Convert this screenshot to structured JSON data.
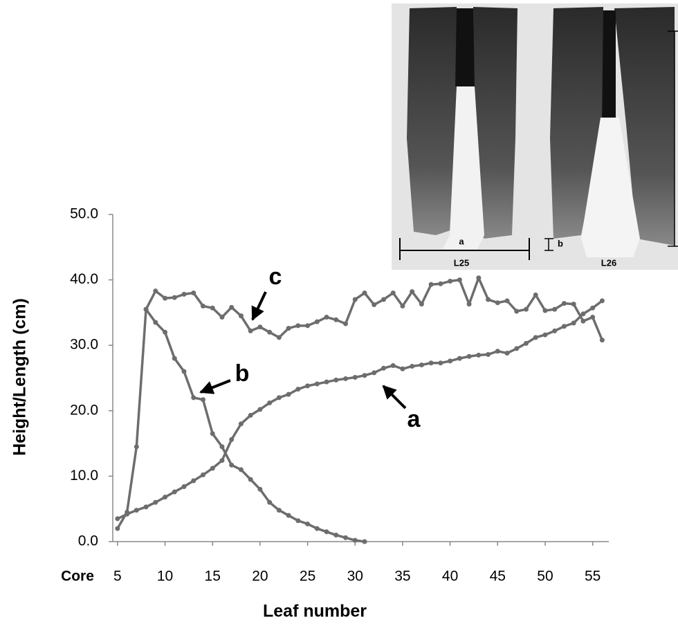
{
  "chart_data": {
    "type": "line",
    "xlabel": "Leaf number",
    "ylabel": "Height/Length (cm)",
    "xtick_prefix": "Core",
    "x": [
      5,
      6,
      7,
      8,
      9,
      10,
      11,
      12,
      13,
      14,
      15,
      16,
      17,
      18,
      19,
      20,
      21,
      22,
      23,
      24,
      25,
      26,
      27,
      28,
      29,
      30,
      31,
      32,
      33,
      34,
      35,
      36,
      37,
      38,
      39,
      40,
      41,
      42,
      43,
      44,
      45,
      46,
      47,
      48,
      49,
      50,
      51,
      52,
      53,
      54,
      55,
      56
    ],
    "series": [
      {
        "name": "a",
        "color": "#6d6d6d",
        "values": [
          3.5,
          4.2,
          4.8,
          5.3,
          6.0,
          6.8,
          7.6,
          8.4,
          9.3,
          10.2,
          11.2,
          12.4,
          15.6,
          18.0,
          19.3,
          20.2,
          21.2,
          22.0,
          22.5,
          23.3,
          23.8,
          24.1,
          24.4,
          24.7,
          24.9,
          25.1,
          25.4,
          25.8,
          26.5,
          26.9,
          26.4,
          26.8,
          27.0,
          27.3,
          27.3,
          27.6,
          28.0,
          28.3,
          28.5,
          28.6,
          29.1,
          28.8,
          29.5,
          30.3,
          31.2,
          31.6,
          32.2,
          32.9,
          33.4,
          34.8,
          35.7,
          36.8
        ]
      },
      {
        "name": "b",
        "color": "#6d6d6d",
        "values": [
          2.0,
          4.5,
          14.5,
          35.5,
          33.5,
          32.0,
          28.0,
          26.0,
          22.0,
          21.7,
          16.5,
          14.5,
          11.7,
          11.0,
          9.5,
          8.0,
          6.0,
          4.8,
          4.0,
          3.2,
          2.7,
          2.0,
          1.5,
          1.0,
          0.6,
          0.2,
          0.0,
          null,
          null,
          null,
          null,
          null,
          null,
          null,
          null,
          null,
          null,
          null,
          null,
          null,
          null,
          null,
          null,
          null,
          null,
          null,
          null,
          null,
          null,
          null,
          null,
          null
        ]
      },
      {
        "name": "c",
        "color": "#6d6d6d",
        "values": [
          null,
          null,
          null,
          35.5,
          38.3,
          37.2,
          37.3,
          37.8,
          38.0,
          36.0,
          35.7,
          34.3,
          35.8,
          34.5,
          32.2,
          32.8,
          32.0,
          31.2,
          32.6,
          33.0,
          33.0,
          33.6,
          34.3,
          33.9,
          33.3,
          37.0,
          38.0,
          36.2,
          37.0,
          38.0,
          36.0,
          38.2,
          36.3,
          39.3,
          39.4,
          39.8,
          40.0,
          36.3,
          40.3,
          37.0,
          36.5,
          36.8,
          35.2,
          35.5,
          37.7,
          35.3,
          35.5,
          36.4,
          36.3,
          33.7,
          34.3,
          30.8
        ]
      }
    ],
    "xlim": [
      4.5,
      56.7
    ],
    "xticks": [
      5,
      10,
      15,
      20,
      25,
      30,
      35,
      40,
      45,
      50,
      55
    ],
    "ylim": [
      0,
      50
    ],
    "yticks": [
      {
        "value": 0,
        "label": "0.0"
      },
      {
        "value": 10,
        "label": "10.0"
      },
      {
        "value": 20,
        "label": "20.0"
      },
      {
        "value": 30,
        "label": "30.0"
      },
      {
        "value": 40,
        "label": "40.0"
      },
      {
        "value": 50,
        "label": "50.0"
      }
    ],
    "grid": false,
    "annotations": [
      "a",
      "b",
      "c"
    ],
    "inset_labels": [
      "a",
      "b",
      "L25",
      "L26"
    ]
  }
}
